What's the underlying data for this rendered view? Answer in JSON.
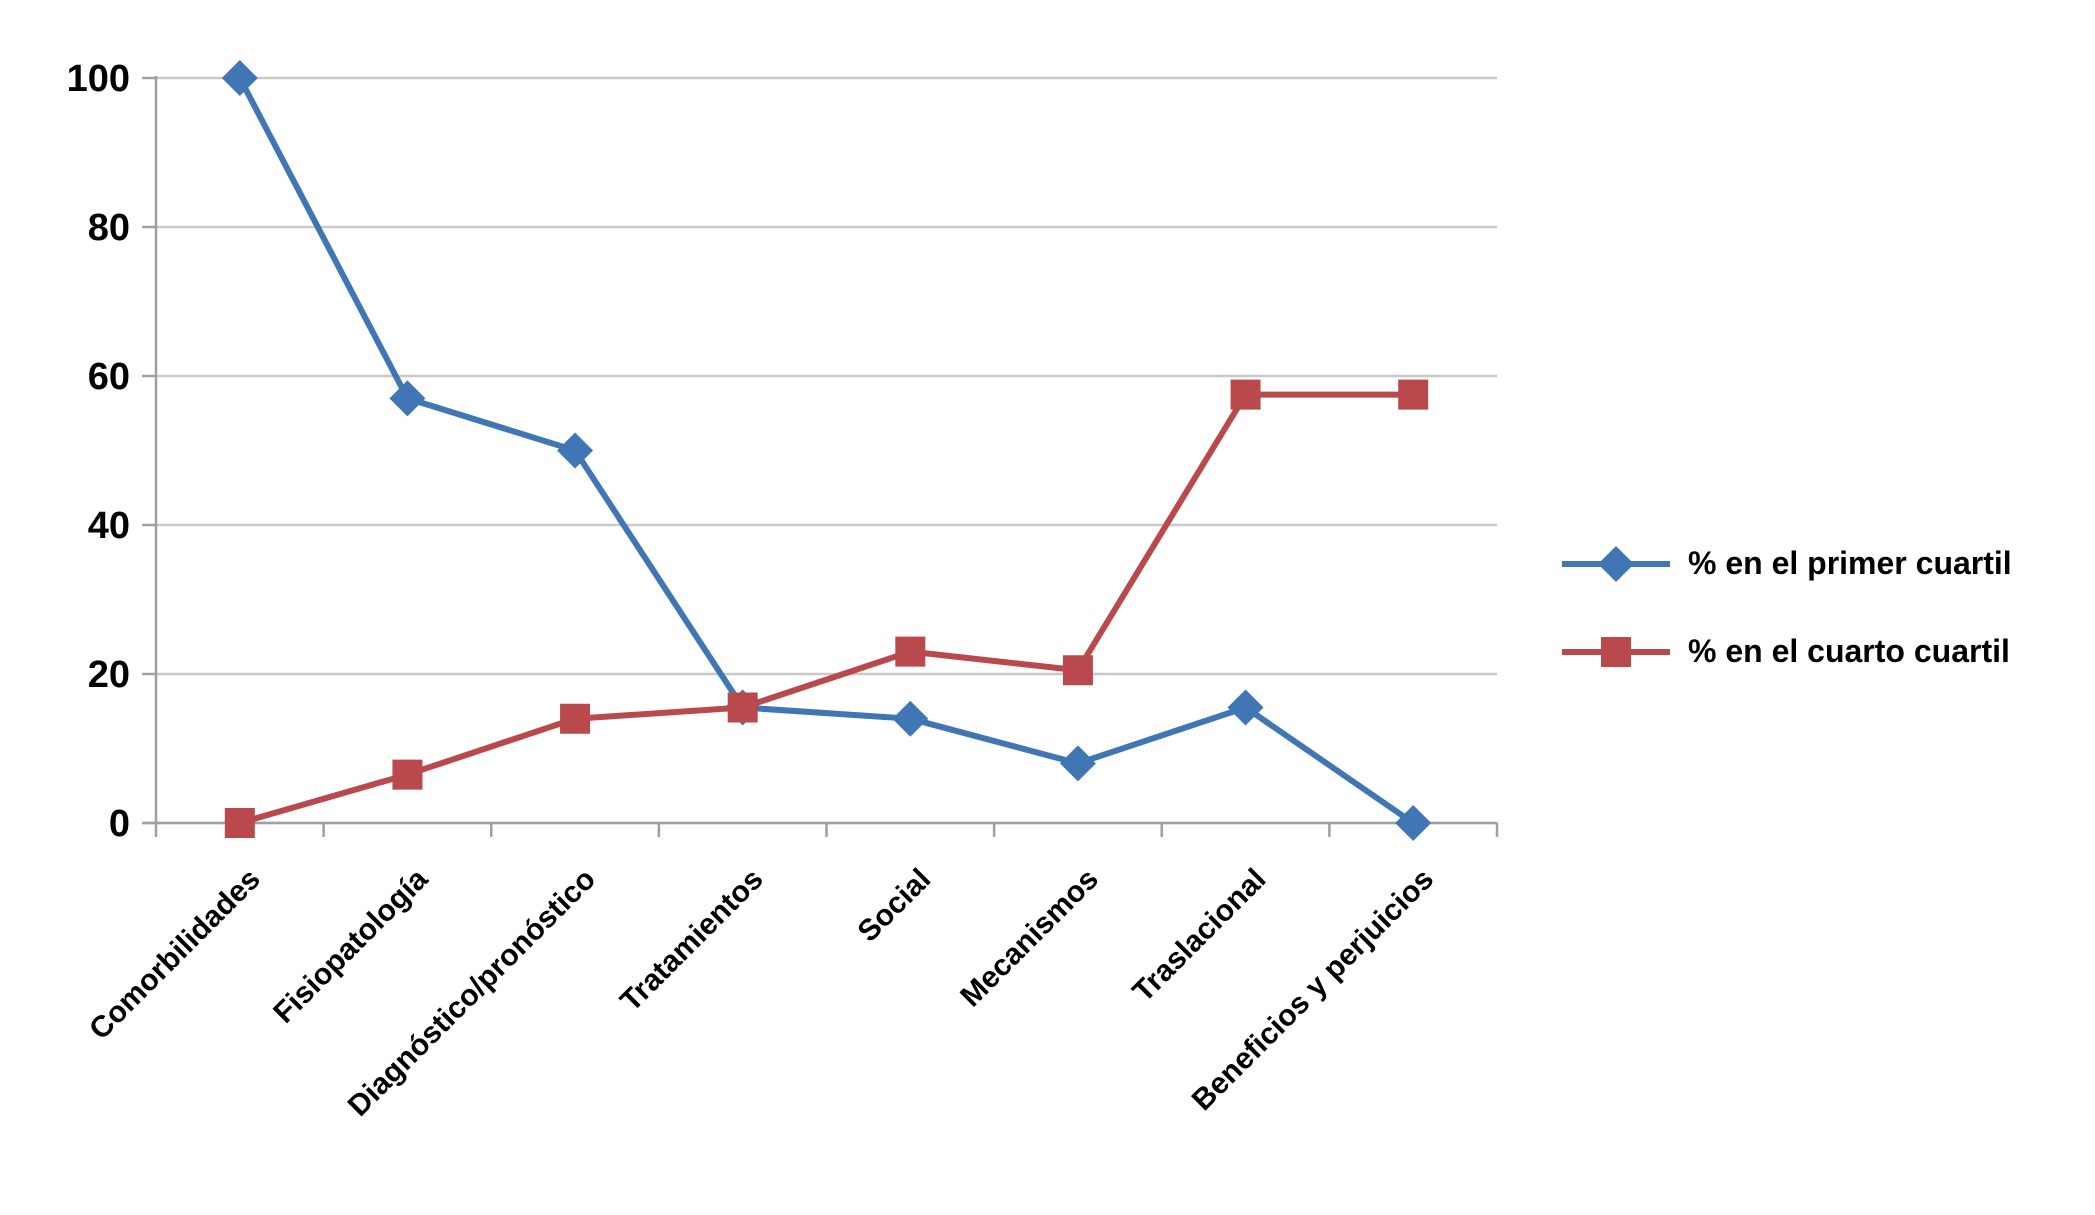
{
  "chart_data": {
    "type": "line",
    "title": "",
    "xlabel": "",
    "ylabel": "",
    "categories": [
      "Comorbilidades",
      "Fisiopatología",
      "Diagnóstico/pronóstico",
      "Tratamientos",
      "Social",
      "Mecanismos",
      "Traslacional",
      "Beneficios y perjuicios"
    ],
    "series": [
      {
        "name": "% en el primer cuartil",
        "color": "#4076B4",
        "marker": "diamond",
        "values": [
          100,
          57,
          50,
          15.5,
          14,
          8,
          15.5,
          0
        ]
      },
      {
        "name": "% en el cuarto cuartil",
        "color": "#B9494C",
        "marker": "square",
        "values": [
          0,
          6.5,
          14,
          15.5,
          23,
          20.5,
          57.5,
          57.5
        ]
      }
    ],
    "ylim": [
      0,
      100
    ],
    "yticks": [
      0,
      20,
      40,
      60,
      80,
      100
    ],
    "grid": true,
    "legend_position": "right",
    "colors": {
      "gridline": "#C9C9C9",
      "axis": "#A0A0A0",
      "text": "#000000"
    }
  }
}
